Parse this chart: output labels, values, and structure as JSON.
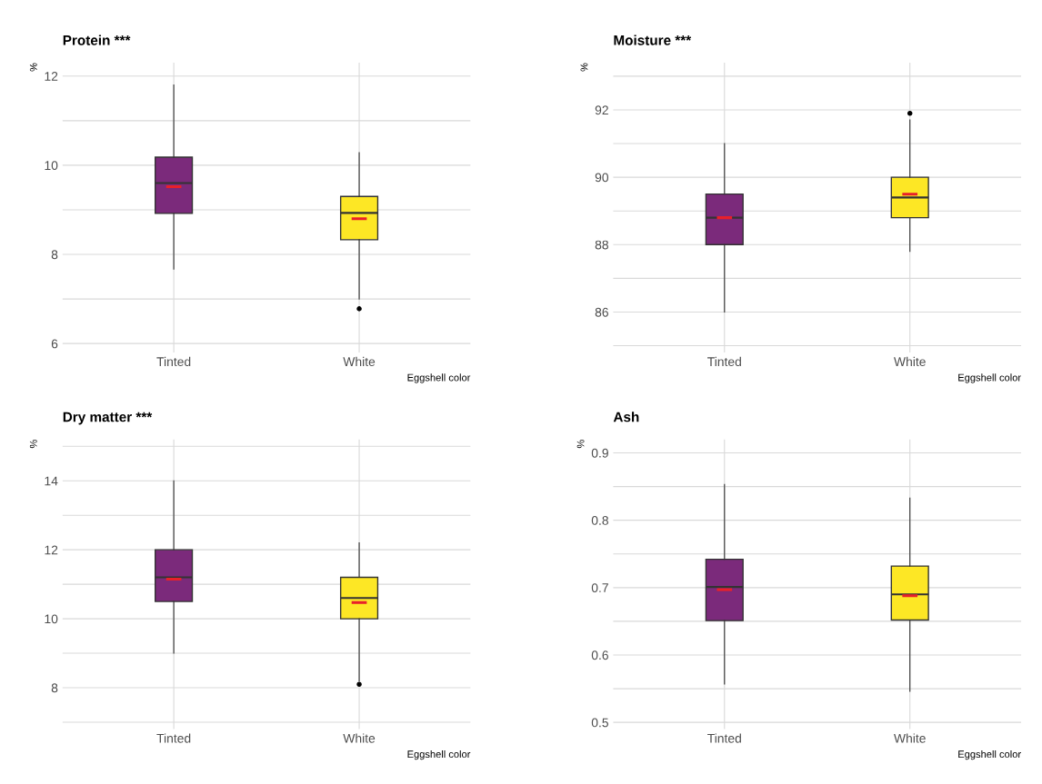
{
  "chart_data": [
    {
      "type": "box",
      "title": "Protein ***",
      "xlabel": "Eggshell color",
      "ylabel": "%",
      "categories": [
        "Tinted",
        "White"
      ],
      "colors": [
        "#7b2a7b",
        "#fde725"
      ],
      "boxes": [
        {
          "low": 7.67,
          "q1": 8.92,
          "median": 9.6,
          "q3": 10.18,
          "high": 11.8,
          "mean": 9.52
        },
        {
          "low": 7.0,
          "q1": 8.33,
          "median": 8.93,
          "q3": 9.3,
          "high": 10.28,
          "mean": 8.8,
          "outliers": [
            6.78
          ]
        }
      ],
      "ylim": [
        5.8,
        12.3
      ],
      "yticks": [
        6,
        {
          "value": 7,
          "label": null
        },
        8,
        {
          "value": 9,
          "label": null
        },
        10,
        {
          "value": 11,
          "label": null
        },
        12
      ],
      "grid": true
    },
    {
      "type": "box",
      "title": "Moisture ***",
      "xlabel": "Eggshell color",
      "ylabel": "%",
      "categories": [
        "Tinted",
        "White"
      ],
      "colors": [
        "#7b2a7b",
        "#fde725"
      ],
      "boxes": [
        {
          "low": 86.0,
          "q1": 88.0,
          "median": 88.8,
          "q3": 89.5,
          "high": 91.0,
          "mean": 88.8
        },
        {
          "low": 87.8,
          "q1": 88.8,
          "median": 89.4,
          "q3": 90.0,
          "high": 91.7,
          "mean": 89.5,
          "outliers": [
            91.9
          ]
        }
      ],
      "ylim": [
        84.8,
        93.4
      ],
      "yticks": [
        {
          "value": 85,
          "label": null
        },
        86,
        {
          "value": 87,
          "label": null
        },
        88,
        {
          "value": 89,
          "label": null
        },
        90,
        {
          "value": 91,
          "label": null
        },
        92,
        {
          "value": 93,
          "label": null
        }
      ],
      "grid": true
    },
    {
      "type": "box",
      "title": "Dry matter ***",
      "xlabel": "Eggshell color",
      "ylabel": "%",
      "categories": [
        "Tinted",
        "White"
      ],
      "colors": [
        "#7b2a7b",
        "#fde725"
      ],
      "boxes": [
        {
          "low": 9.0,
          "q1": 10.5,
          "median": 11.2,
          "q3": 12.0,
          "high": 14.0,
          "mean": 11.15
        },
        {
          "low": 8.2,
          "q1": 10.0,
          "median": 10.6,
          "q3": 11.2,
          "high": 12.2,
          "mean": 10.47,
          "outliers": [
            8.1
          ]
        }
      ],
      "ylim": [
        6.8,
        15.2
      ],
      "yticks": [
        {
          "value": 7,
          "label": null
        },
        8,
        {
          "value": 9,
          "label": null
        },
        10,
        {
          "value": 11,
          "label": null
        },
        12,
        {
          "value": 13,
          "label": null
        },
        14,
        {
          "value": 15,
          "label": null
        }
      ],
      "grid": true
    },
    {
      "type": "box",
      "title": "Ash",
      "xlabel": "Eggshell color",
      "ylabel": "%",
      "categories": [
        "Tinted",
        "White"
      ],
      "colors": [
        "#7b2a7b",
        "#fde725"
      ],
      "boxes": [
        {
          "low": 0.557,
          "q1": 0.651,
          "median": 0.701,
          "q3": 0.742,
          "high": 0.853,
          "mean": 0.697
        },
        {
          "low": 0.546,
          "q1": 0.652,
          "median": 0.69,
          "q3": 0.732,
          "high": 0.833,
          "mean": 0.688
        }
      ],
      "ylim": [
        0.49,
        0.92
      ],
      "yticks": [
        0.5,
        {
          "value": 0.55,
          "label": null
        },
        0.6,
        {
          "value": 0.65,
          "label": null
        },
        0.7,
        {
          "value": 0.75,
          "label": null
        },
        0.8,
        {
          "value": 0.85,
          "label": null
        },
        0.9
      ],
      "grid": true
    }
  ]
}
